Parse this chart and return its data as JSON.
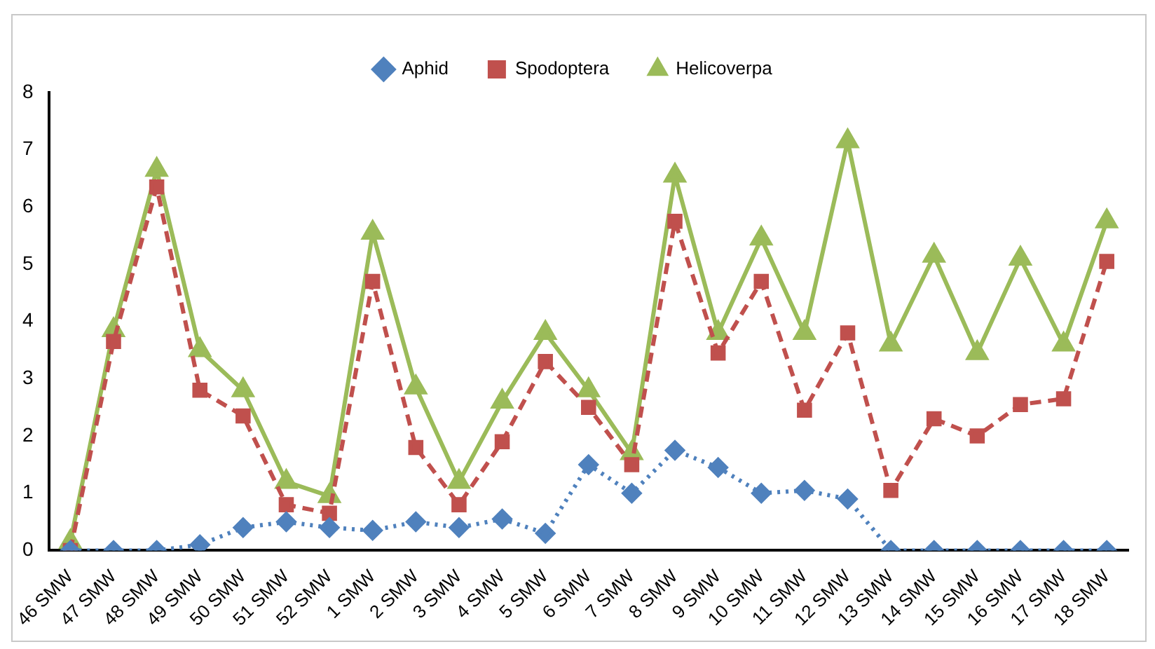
{
  "chart_data": {
    "type": "line",
    "categories": [
      "46 SMW",
      "47 SMW",
      "48 SMW",
      "49 SMW",
      "50 SMW",
      "51 SMW",
      "52 SMW",
      "1 SMW",
      "2 SMW",
      "3 SMW",
      "4 SMW",
      "5 SMW",
      "6 SMW",
      "7 SMW",
      "8 SMW",
      "9 SMW",
      "10 SMW",
      "11 SMW",
      "12 SMW",
      "13 SMW",
      "14 SMW",
      "15 SMW",
      "16 SMW",
      "17 SMW",
      "18 SMW"
    ],
    "series": [
      {
        "name": "Aphid",
        "color": "#4f81bd",
        "marker": "diamond",
        "line_style": "dotted",
        "values": [
          0,
          0,
          0,
          0.1,
          0.4,
          0.5,
          0.4,
          0.35,
          0.5,
          0.4,
          0.55,
          0.3,
          1.5,
          1.0,
          1.75,
          1.45,
          1.0,
          1.05,
          0.9,
          0,
          0,
          0,
          0,
          0,
          0
        ]
      },
      {
        "name": "Spodoptera",
        "color": "#c0504d",
        "marker": "square",
        "line_style": "dashed",
        "values": [
          0,
          3.65,
          6.35,
          2.8,
          2.35,
          0.8,
          0.65,
          4.7,
          1.8,
          0.8,
          1.9,
          3.3,
          2.5,
          1.5,
          5.75,
          3.45,
          4.7,
          2.45,
          3.8,
          1.05,
          2.3,
          2.0,
          2.55,
          2.65,
          5.05
        ]
      },
      {
        "name": "Helicoverpa",
        "color": "#9bbb59",
        "marker": "triangle",
        "line_style": "solid",
        "values": [
          0.15,
          3.85,
          6.65,
          3.5,
          2.8,
          1.2,
          0.95,
          5.55,
          2.85,
          1.2,
          2.6,
          3.8,
          2.8,
          1.7,
          6.55,
          3.8,
          5.45,
          3.8,
          7.15,
          3.6,
          5.15,
          3.45,
          5.1,
          3.6,
          5.75
        ]
      }
    ],
    "ylim": [
      0,
      8
    ],
    "yticks": [
      0,
      1,
      2,
      3,
      4,
      5,
      6,
      7,
      8
    ],
    "grid": false,
    "legend": "top"
  }
}
